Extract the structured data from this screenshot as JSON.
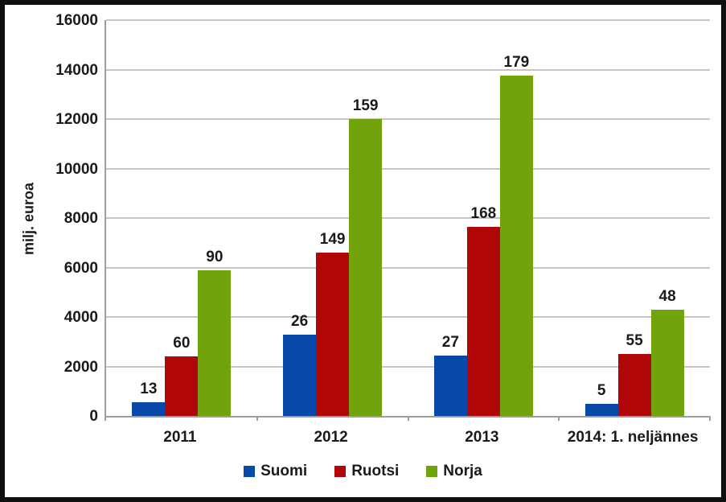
{
  "chart_data": {
    "type": "bar",
    "title": "",
    "xlabel": "",
    "ylabel": "milj. euroa",
    "ylim": [
      0,
      16000
    ],
    "yticks": [
      0,
      2000,
      4000,
      6000,
      8000,
      10000,
      12000,
      14000,
      16000
    ],
    "grid": true,
    "legend_position": "bottom",
    "categories": [
      "2011",
      "2012",
      "2013",
      "2014: 1. neljännes"
    ],
    "series": [
      {
        "name": "Suomi",
        "color": "#0848a8",
        "values": [
          550,
          3300,
          2450,
          500
        ],
        "bar_labels": [
          "13",
          "26",
          "27",
          "5"
        ]
      },
      {
        "name": "Ruotsi",
        "color": "#b00606",
        "values": [
          2400,
          6600,
          7650,
          2500
        ],
        "bar_labels": [
          "60",
          "149",
          "168",
          "55"
        ]
      },
      {
        "name": "Norja",
        "color": "#71a30d",
        "values": [
          5900,
          12000,
          13750,
          4300
        ],
        "bar_labels": [
          "90",
          "159",
          "179",
          "48"
        ]
      }
    ],
    "colors": {
      "grid": "#c6c6c6",
      "axis": "#9e9e9e",
      "text": "#1a1a1a",
      "frame": "#0f0f0f",
      "background": "#ffffff"
    }
  }
}
